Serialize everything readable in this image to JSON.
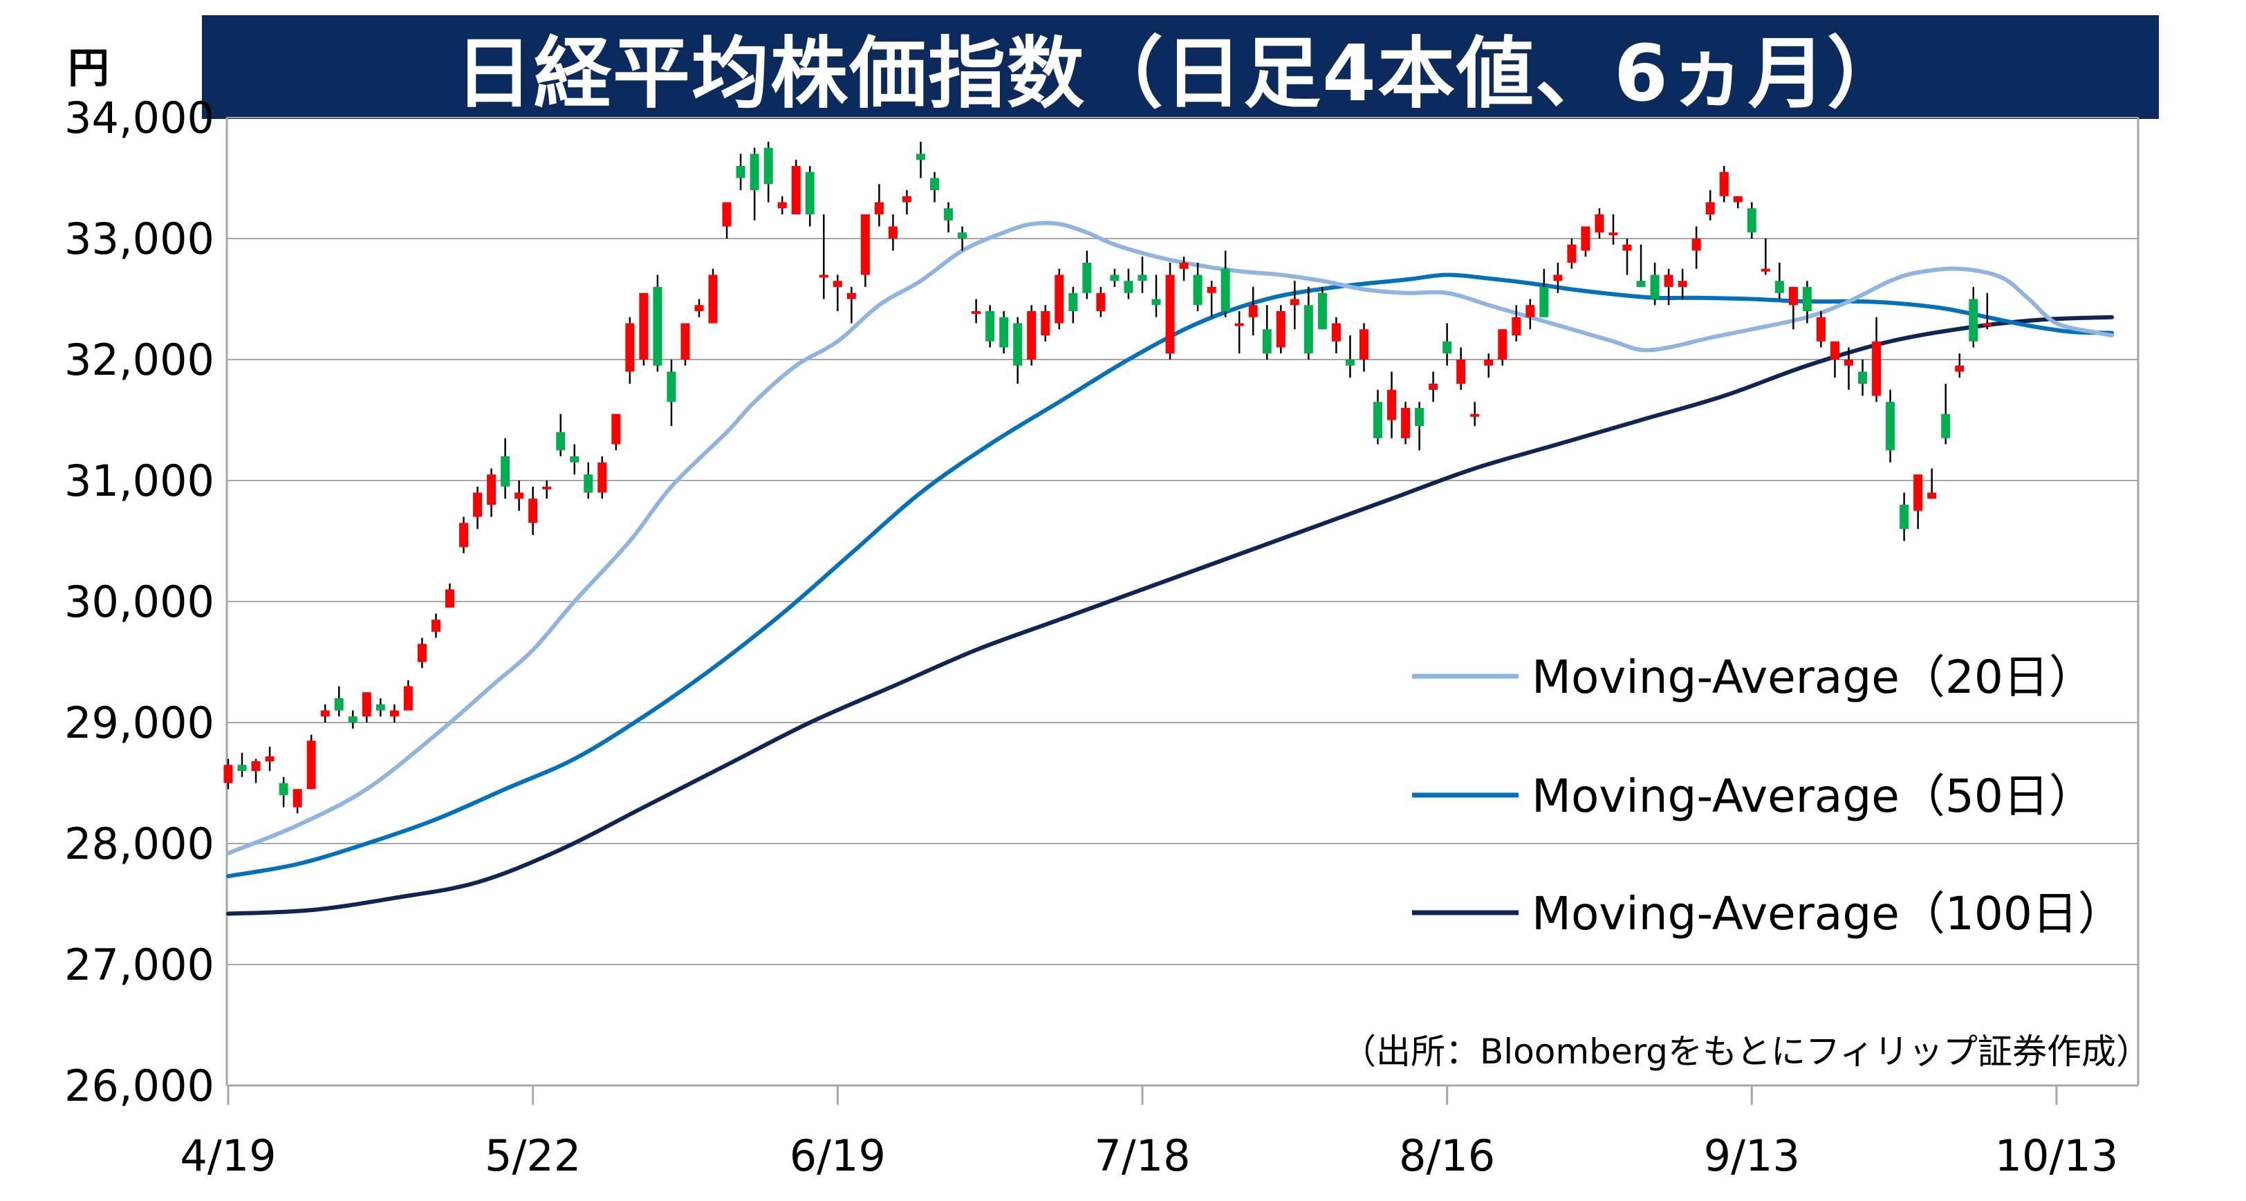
{
  "title": "日経平均株価指数（日足4本値、6ヵ月）",
  "unit_label": "円",
  "source_note": "（出所：Bloombergをもとにフィリップ証券作成）",
  "colors": {
    "title_bg": "#0b2a5e",
    "candle_up": "#ff0000",
    "candle_down": "#00b050",
    "ma20": "#8db4e2",
    "ma50": "#0070c0",
    "ma100": "#0f2557",
    "grid": "#a6a6a6"
  },
  "chart_data": {
    "type": "candlestick",
    "title": "日経平均株価指数（日足4本値、6ヵ月）",
    "ylabel": "円",
    "ylim": [
      26000,
      34000
    ],
    "y_ticks": [
      26000,
      27000,
      28000,
      29000,
      30000,
      31000,
      32000,
      33000,
      34000
    ],
    "y_tick_labels": [
      "26,000",
      "27,000",
      "28,000",
      "29,000",
      "30,000",
      "31,000",
      "32,000",
      "33,000",
      "34,000"
    ],
    "x_tick_labels": [
      {
        "label": "4/19",
        "index": 0
      },
      {
        "label": "5/22",
        "index": 22
      },
      {
        "label": "6/19",
        "index": 44
      },
      {
        "label": "7/18",
        "index": 66
      },
      {
        "label": "8/16",
        "index": 88
      },
      {
        "label": "9/13",
        "index": 110
      },
      {
        "label": "10/13",
        "index": 132
      }
    ],
    "grid": true,
    "legend_position": "right",
    "legend": [
      {
        "name": "Moving-Average（20日）",
        "key": "ma20"
      },
      {
        "name": "Moving-Average（50日）",
        "key": "ma50"
      },
      {
        "name": "Moving-Average（100日）",
        "key": "ma100"
      }
    ],
    "ohlc": [
      [
        28500,
        28700,
        28450,
        28650
      ],
      [
        28650,
        28750,
        28550,
        28600
      ],
      [
        28600,
        28700,
        28500,
        28680
      ],
      [
        28680,
        28800,
        28600,
        28720
      ],
      [
        28500,
        28550,
        28300,
        28400
      ],
      [
        28300,
        28450,
        28250,
        28450
      ],
      [
        28450,
        28900,
        28450,
        28850
      ],
      [
        29050,
        29150,
        29000,
        29100
      ],
      [
        29200,
        29300,
        29050,
        29100
      ],
      [
        29050,
        29100,
        28950,
        29000
      ],
      [
        29050,
        29250,
        29000,
        29250
      ],
      [
        29150,
        29200,
        29050,
        29100
      ],
      [
        29050,
        29150,
        29000,
        29100
      ],
      [
        29100,
        29350,
        29100,
        29300
      ],
      [
        29500,
        29700,
        29450,
        29650
      ],
      [
        29750,
        29900,
        29700,
        29850
      ],
      [
        29950,
        30150,
        29950,
        30100
      ],
      [
        30450,
        30700,
        30400,
        30650
      ],
      [
        30700,
        30950,
        30600,
        30900
      ],
      [
        30800,
        31100,
        30700,
        31050
      ],
      [
        31200,
        31350,
        30850,
        30950
      ],
      [
        30850,
        31000,
        30750,
        30900
      ],
      [
        30650,
        30950,
        30550,
        30850
      ],
      [
        30950,
        31000,
        30850,
        30950
      ],
      [
        31400,
        31550,
        31200,
        31250
      ],
      [
        31200,
        31300,
        31050,
        31150
      ],
      [
        31050,
        31150,
        30850,
        30900
      ],
      [
        30900,
        31200,
        30850,
        31150
      ],
      [
        31300,
        31550,
        31250,
        31550
      ],
      [
        31900,
        32350,
        31800,
        32300
      ],
      [
        32000,
        32550,
        31950,
        32550
      ],
      [
        32600,
        32700,
        31900,
        31950
      ],
      [
        31900,
        32000,
        31450,
        31650
      ],
      [
        32000,
        32300,
        31950,
        32300
      ],
      [
        32400,
        32500,
        32350,
        32450
      ],
      [
        32300,
        32750,
        32300,
        32700
      ],
      [
        33100,
        33300,
        33000,
        33300
      ],
      [
        33600,
        33700,
        33400,
        33500
      ],
      [
        33700,
        33750,
        33150,
        33400
      ],
      [
        33750,
        33800,
        33300,
        33450
      ],
      [
        33250,
        33350,
        33200,
        33300
      ],
      [
        33200,
        33650,
        33200,
        33600
      ],
      [
        33550,
        33600,
        33100,
        33200
      ],
      [
        32700,
        33200,
        32500,
        32700
      ],
      [
        32600,
        32700,
        32400,
        32650
      ],
      [
        32500,
        32600,
        32300,
        32550
      ],
      [
        32700,
        33200,
        32600,
        33200
      ],
      [
        33200,
        33450,
        33100,
        33300
      ],
      [
        33000,
        33200,
        32900,
        33100
      ],
      [
        33300,
        33400,
        33200,
        33350
      ],
      [
        33700,
        33800,
        33500,
        33650
      ],
      [
        33500,
        33550,
        33300,
        33400
      ],
      [
        33250,
        33300,
        33050,
        33150
      ],
      [
        33050,
        33100,
        32900,
        33000
      ],
      [
        32400,
        32500,
        32300,
        32400
      ],
      [
        32400,
        32450,
        32100,
        32150
      ],
      [
        32350,
        32400,
        32050,
        32100
      ],
      [
        32300,
        32350,
        31800,
        31950
      ],
      [
        32000,
        32450,
        31950,
        32400
      ],
      [
        32200,
        32450,
        32150,
        32400
      ],
      [
        32300,
        32750,
        32250,
        32700
      ],
      [
        32550,
        32600,
        32300,
        32400
      ],
      [
        32800,
        32900,
        32500,
        32550
      ],
      [
        32400,
        32600,
        32350,
        32550
      ],
      [
        32700,
        32750,
        32600,
        32650
      ],
      [
        32650,
        32750,
        32500,
        32550
      ],
      [
        32700,
        32850,
        32550,
        32650
      ],
      [
        32500,
        32700,
        32350,
        32450
      ],
      [
        32050,
        32800,
        32000,
        32700
      ],
      [
        32750,
        32850,
        32650,
        32800
      ],
      [
        32700,
        32800,
        32400,
        32450
      ],
      [
        32550,
        32650,
        32350,
        32600
      ],
      [
        32750,
        32900,
        32350,
        32400
      ],
      [
        32300,
        32400,
        32050,
        32300
      ],
      [
        32350,
        32600,
        32200,
        32450
      ],
      [
        32250,
        32450,
        32000,
        32050
      ],
      [
        32100,
        32450,
        32050,
        32400
      ],
      [
        32450,
        32650,
        32250,
        32500
      ],
      [
        32450,
        32600,
        32000,
        32050
      ],
      [
        32550,
        32600,
        32250,
        32250
      ],
      [
        32150,
        32350,
        32050,
        32300
      ],
      [
        32000,
        32200,
        31850,
        31950
      ],
      [
        32000,
        32300,
        31900,
        32250
      ],
      [
        31650,
        31750,
        31300,
        31350
      ],
      [
        31500,
        31900,
        31350,
        31750
      ],
      [
        31350,
        31650,
        31300,
        31600
      ],
      [
        31600,
        31650,
        31250,
        31450
      ],
      [
        31750,
        31900,
        31650,
        31800
      ],
      [
        32150,
        32300,
        31950,
        32050
      ],
      [
        31800,
        32100,
        31750,
        32000
      ],
      [
        31550,
        31650,
        31450,
        31550
      ],
      [
        31950,
        32050,
        31850,
        32000
      ],
      [
        32000,
        32250,
        31950,
        32250
      ],
      [
        32200,
        32450,
        32150,
        32350
      ],
      [
        32350,
        32500,
        32250,
        32450
      ],
      [
        32600,
        32750,
        32350,
        32350
      ],
      [
        32650,
        32800,
        32550,
        32700
      ],
      [
        32800,
        33000,
        32750,
        32950
      ],
      [
        32900,
        33100,
        32850,
        33100
      ],
      [
        33050,
        33250,
        33000,
        33200
      ],
      [
        33050,
        33200,
        32950,
        33050
      ],
      [
        32900,
        33000,
        32700,
        32950
      ],
      [
        32650,
        32950,
        32600,
        32600
      ],
      [
        32700,
        32800,
        32450,
        32500
      ],
      [
        32600,
        32750,
        32450,
        32700
      ],
      [
        32600,
        32750,
        32500,
        32650
      ],
      [
        32900,
        33100,
        32750,
        33000
      ],
      [
        33200,
        33400,
        33150,
        33300
      ],
      [
        33350,
        33600,
        33300,
        33550
      ],
      [
        33300,
        33350,
        33250,
        33350
      ],
      [
        33250,
        33300,
        33000,
        33050
      ],
      [
        32750,
        33000,
        32700,
        32750
      ],
      [
        32650,
        32800,
        32500,
        32550
      ],
      [
        32450,
        32600,
        32250,
        32600
      ],
      [
        32600,
        32650,
        32300,
        32400
      ],
      [
        32150,
        32400,
        32100,
        32350
      ],
      [
        32000,
        32150,
        31850,
        32150
      ],
      [
        31950,
        32100,
        31750,
        32000
      ],
      [
        31900,
        32000,
        31700,
        31800
      ],
      [
        31700,
        32350,
        31650,
        32150
      ],
      [
        31650,
        31750,
        31150,
        31250
      ],
      [
        30800,
        30900,
        30500,
        30600
      ],
      [
        30750,
        31050,
        30600,
        31050
      ],
      [
        30850,
        31100,
        30850,
        30900
      ],
      [
        31550,
        31800,
        31300,
        31350
      ],
      [
        31900,
        32050,
        31850,
        31950
      ],
      [
        32500,
        32600,
        32100,
        32150
      ],
      [
        32300,
        32550,
        32250,
        32300
      ]
    ],
    "ma20": [
      [
        0,
        27920
      ],
      [
        5,
        28150
      ],
      [
        10,
        28450
      ],
      [
        15,
        28900
      ],
      [
        19,
        29300
      ],
      [
        22,
        29600
      ],
      [
        25,
        30000
      ],
      [
        29,
        30500
      ],
      [
        32,
        30950
      ],
      [
        36,
        31400
      ],
      [
        38,
        31650
      ],
      [
        41,
        31950
      ],
      [
        44,
        32150
      ],
      [
        47,
        32450
      ],
      [
        50,
        32650
      ],
      [
        53,
        32900
      ],
      [
        56,
        33050
      ],
      [
        58,
        33120
      ],
      [
        60,
        33120
      ],
      [
        62,
        33050
      ],
      [
        64,
        32950
      ],
      [
        67,
        32850
      ],
      [
        70,
        32780
      ],
      [
        73,
        32730
      ],
      [
        76,
        32700
      ],
      [
        79,
        32650
      ],
      [
        82,
        32580
      ],
      [
        85,
        32550
      ],
      [
        88,
        32550
      ],
      [
        91,
        32450
      ],
      [
        94,
        32350
      ],
      [
        97,
        32250
      ],
      [
        100,
        32150
      ],
      [
        102,
        32080
      ],
      [
        104,
        32100
      ],
      [
        107,
        32180
      ],
      [
        110,
        32250
      ],
      [
        114,
        32350
      ],
      [
        117,
        32480
      ],
      [
        120,
        32650
      ],
      [
        122,
        32720
      ],
      [
        125,
        32750
      ],
      [
        128,
        32680
      ],
      [
        130,
        32500
      ],
      [
        132,
        32300
      ],
      [
        135,
        32220
      ],
      [
        136,
        32200
      ]
    ],
    "ma50": [
      [
        0,
        27730
      ],
      [
        5,
        27830
      ],
      [
        10,
        28000
      ],
      [
        15,
        28200
      ],
      [
        20,
        28450
      ],
      [
        25,
        28700
      ],
      [
        30,
        29050
      ],
      [
        35,
        29450
      ],
      [
        40,
        29900
      ],
      [
        45,
        30400
      ],
      [
        50,
        30900
      ],
      [
        55,
        31300
      ],
      [
        60,
        31650
      ],
      [
        65,
        32000
      ],
      [
        70,
        32300
      ],
      [
        75,
        32500
      ],
      [
        80,
        32600
      ],
      [
        85,
        32660
      ],
      [
        88,
        32700
      ],
      [
        91,
        32670
      ],
      [
        94,
        32630
      ],
      [
        97,
        32580
      ],
      [
        100,
        32540
      ],
      [
        103,
        32510
      ],
      [
        106,
        32510
      ],
      [
        110,
        32500
      ],
      [
        114,
        32480
      ],
      [
        118,
        32480
      ],
      [
        121,
        32460
      ],
      [
        124,
        32420
      ],
      [
        127,
        32350
      ],
      [
        130,
        32280
      ],
      [
        133,
        32230
      ],
      [
        136,
        32220
      ]
    ],
    "ma100": [
      [
        0,
        27420
      ],
      [
        6,
        27450
      ],
      [
        12,
        27550
      ],
      [
        18,
        27680
      ],
      [
        24,
        27950
      ],
      [
        30,
        28300
      ],
      [
        36,
        28650
      ],
      [
        42,
        29000
      ],
      [
        48,
        29300
      ],
      [
        54,
        29600
      ],
      [
        60,
        29850
      ],
      [
        66,
        30100
      ],
      [
        72,
        30350
      ],
      [
        78,
        30600
      ],
      [
        84,
        30850
      ],
      [
        90,
        31100
      ],
      [
        96,
        31300
      ],
      [
        102,
        31500
      ],
      [
        108,
        31700
      ],
      [
        114,
        31950
      ],
      [
        120,
        32150
      ],
      [
        126,
        32270
      ],
      [
        131,
        32330
      ],
      [
        136,
        32350
      ]
    ]
  }
}
